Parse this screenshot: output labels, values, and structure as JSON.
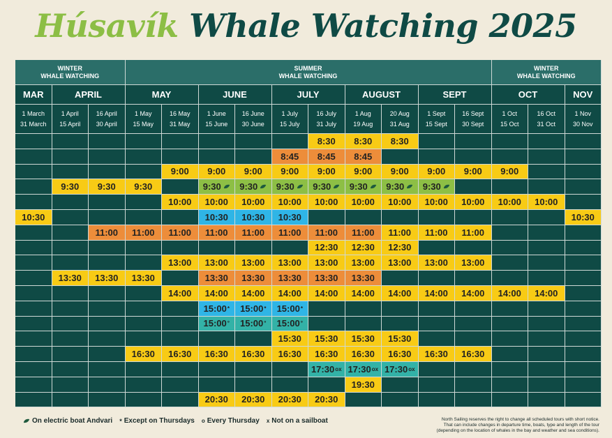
{
  "title": {
    "part1": "Húsavík",
    "part2": "Whale Watching 2025"
  },
  "seasons": [
    {
      "label_line1": "WINTER",
      "label_line2": "WHALE WATCHING"
    },
    {
      "label_line1": "SUMMER",
      "label_line2": "WHALE WATCHING"
    },
    {
      "label_line1": "WINTER",
      "label_line2": "WHALE WATCHING"
    }
  ],
  "months": [
    "MAR",
    "APRIL",
    "MAY",
    "JUNE",
    "JULY",
    "AUGUST",
    "SEPT",
    "OCT",
    "NOV"
  ],
  "ranges": [
    [
      "1 March",
      "31 March"
    ],
    [
      "1 April",
      "15 April"
    ],
    [
      "16 April",
      "30 April"
    ],
    [
      "1 May",
      "15 May"
    ],
    [
      "16 May",
      "31 May"
    ],
    [
      "1 June",
      "15 June"
    ],
    [
      "16 June",
      "30 June"
    ],
    [
      "1 July",
      "15 July"
    ],
    [
      "16 July",
      "31 July"
    ],
    [
      "1 Aug",
      "19 Aug"
    ],
    [
      "20 Aug",
      "31 Aug"
    ],
    [
      "1 Sept",
      "15 Sept"
    ],
    [
      "16 Sept",
      "30 Sept"
    ],
    [
      "1 Oct",
      "15 Oct"
    ],
    [
      "16 Oct",
      "31 Oct"
    ],
    [
      "1 Nov",
      "30 Nov"
    ]
  ],
  "colors": {
    "y": "#f8cb15",
    "o": "#ed8d3a",
    "g": "#8dbf45",
    "b": "#2fb5e6",
    "tq": "#33b2a7",
    "dark": "#0f4a45",
    "header": "#2b6e69"
  },
  "schedule": [
    {
      "time": "8:30",
      "cells": [
        [
          8,
          "y"
        ],
        [
          9,
          "y"
        ],
        [
          10,
          "y"
        ]
      ]
    },
    {
      "time": "8:45",
      "cells": [
        [
          7,
          "o"
        ],
        [
          8,
          "o"
        ],
        [
          9,
          "o"
        ]
      ]
    },
    {
      "time": "9:00",
      "cells": [
        [
          4,
          "y"
        ],
        [
          5,
          "y"
        ],
        [
          6,
          "y"
        ],
        [
          7,
          "y"
        ],
        [
          8,
          "y"
        ],
        [
          9,
          "y"
        ],
        [
          10,
          "y"
        ],
        [
          11,
          "y"
        ],
        [
          12,
          "y"
        ],
        [
          13,
          "y"
        ]
      ]
    },
    {
      "time": "9:30",
      "cells": [
        [
          1,
          "y"
        ],
        [
          2,
          "y"
        ],
        [
          3,
          "y"
        ],
        [
          5,
          "g",
          "leaf"
        ],
        [
          6,
          "g",
          "leaf"
        ],
        [
          7,
          "g",
          "leaf"
        ],
        [
          8,
          "g",
          "leaf"
        ],
        [
          9,
          "g",
          "leaf"
        ],
        [
          10,
          "g",
          "leaf"
        ],
        [
          11,
          "g",
          "leaf"
        ]
      ]
    },
    {
      "time": "10:00",
      "cells": [
        [
          4,
          "y"
        ],
        [
          5,
          "y"
        ],
        [
          6,
          "y"
        ],
        [
          7,
          "y"
        ],
        [
          8,
          "y"
        ],
        [
          9,
          "y"
        ],
        [
          10,
          "y"
        ],
        [
          11,
          "y"
        ],
        [
          12,
          "y"
        ],
        [
          13,
          "y"
        ],
        [
          14,
          "y"
        ]
      ]
    },
    {
      "time": "10:30",
      "cells": [
        [
          0,
          "y"
        ],
        [
          5,
          "b"
        ],
        [
          6,
          "b"
        ],
        [
          7,
          "b"
        ],
        [
          15,
          "y"
        ]
      ]
    },
    {
      "time": "11:00",
      "cells": [
        [
          2,
          "o"
        ],
        [
          3,
          "o"
        ],
        [
          4,
          "o"
        ],
        [
          5,
          "o"
        ],
        [
          6,
          "o"
        ],
        [
          7,
          "o"
        ],
        [
          8,
          "o"
        ],
        [
          9,
          "o"
        ],
        [
          10,
          "y"
        ],
        [
          11,
          "y"
        ],
        [
          12,
          "y"
        ]
      ]
    },
    {
      "time": "12:30",
      "cells": [
        [
          8,
          "y"
        ],
        [
          9,
          "y"
        ],
        [
          10,
          "y"
        ]
      ]
    },
    {
      "time": "13:00",
      "cells": [
        [
          4,
          "y"
        ],
        [
          5,
          "y"
        ],
        [
          6,
          "y"
        ],
        [
          7,
          "y"
        ],
        [
          8,
          "y"
        ],
        [
          9,
          "y"
        ],
        [
          10,
          "y"
        ],
        [
          11,
          "y"
        ],
        [
          12,
          "y"
        ]
      ]
    },
    {
      "time": "13:30",
      "cells": [
        [
          1,
          "y"
        ],
        [
          2,
          "y"
        ],
        [
          3,
          "y"
        ],
        [
          5,
          "o"
        ],
        [
          6,
          "o"
        ],
        [
          7,
          "o"
        ],
        [
          8,
          "o"
        ],
        [
          9,
          "o"
        ]
      ]
    },
    {
      "time": "14:00",
      "cells": [
        [
          4,
          "y"
        ],
        [
          5,
          "y"
        ],
        [
          6,
          "y"
        ],
        [
          7,
          "y"
        ],
        [
          8,
          "y"
        ],
        [
          9,
          "y"
        ],
        [
          10,
          "y"
        ],
        [
          11,
          "y"
        ],
        [
          12,
          "y"
        ],
        [
          13,
          "y"
        ],
        [
          14,
          "y"
        ]
      ]
    },
    {
      "time": "15:00",
      "cells": [
        [
          5,
          "b",
          "*"
        ],
        [
          6,
          "b",
          "*"
        ],
        [
          7,
          "b",
          "*"
        ]
      ]
    },
    {
      "time": "15:00",
      "cells": [
        [
          5,
          "tq",
          "°"
        ],
        [
          6,
          "tq",
          "°"
        ],
        [
          7,
          "tq",
          "°"
        ]
      ]
    },
    {
      "time": "15:30",
      "cells": [
        [
          7,
          "y"
        ],
        [
          8,
          "y"
        ],
        [
          9,
          "y"
        ],
        [
          10,
          "y"
        ]
      ]
    },
    {
      "time": "16:30",
      "cells": [
        [
          3,
          "y"
        ],
        [
          4,
          "y"
        ],
        [
          5,
          "y"
        ],
        [
          6,
          "y"
        ],
        [
          7,
          "y"
        ],
        [
          8,
          "y"
        ],
        [
          9,
          "y"
        ],
        [
          10,
          "y"
        ],
        [
          11,
          "y"
        ],
        [
          12,
          "y"
        ]
      ]
    },
    {
      "time": "17:30",
      "cells": [
        [
          8,
          "tq",
          "ox"
        ],
        [
          9,
          "tq",
          "ox"
        ],
        [
          10,
          "tq",
          "ox"
        ]
      ]
    },
    {
      "time": "19:30",
      "cells": [
        [
          9,
          "y"
        ]
      ]
    },
    {
      "time": "20:30",
      "cells": [
        [
          5,
          "y"
        ],
        [
          6,
          "y"
        ],
        [
          7,
          "y"
        ],
        [
          8,
          "y"
        ]
      ]
    }
  ],
  "legend": {
    "leaf_text": "On electric boat Andvari",
    "star_symbol": "*",
    "star_text": "Except on Thursdays",
    "o_symbol": "o",
    "o_text": "Every Thursday",
    "x_symbol": "x",
    "x_text": "Not on a sailboat"
  },
  "disclaimer": [
    "North Sailing reserves the right to change all scheduled tours with short notice.",
    "That can include changes in departure time, boats, type and length of the tour",
    "(depending on the location of whales in the bay and weather and sea conditions)."
  ]
}
